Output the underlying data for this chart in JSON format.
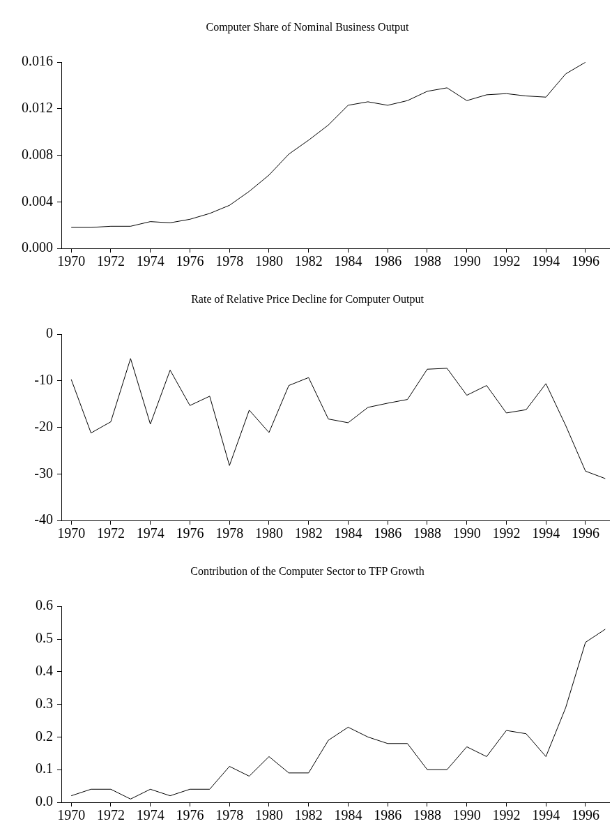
{
  "chart_data": [
    {
      "type": "line",
      "title": "Computer Share of Nominal Business Output",
      "marker": "none",
      "color": "#000000",
      "x": [
        1970,
        1971,
        1972,
        1973,
        1974,
        1975,
        1976,
        1977,
        1978,
        1979,
        1980,
        1981,
        1982,
        1983,
        1984,
        1985,
        1986,
        1987,
        1988,
        1989,
        1990,
        1991,
        1992,
        1993,
        1994,
        1995,
        1996
      ],
      "values": [
        0.0018,
        0.0018,
        0.0019,
        0.0019,
        0.0023,
        0.0022,
        0.0025,
        0.003,
        0.0037,
        0.0049,
        0.0063,
        0.0081,
        0.0093,
        0.0106,
        0.0123,
        0.0126,
        0.0123,
        0.0127,
        0.0135,
        0.0138,
        0.0127,
        0.0132,
        0.0133,
        0.0131,
        0.013,
        0.015,
        0.016
      ],
      "xlim": [
        1969.5,
        1997.2
      ],
      "xticks": [
        1970,
        1972,
        1974,
        1976,
        1978,
        1980,
        1982,
        1984,
        1986,
        1988,
        1990,
        1992,
        1994,
        1996
      ],
      "ylim": [
        0,
        0.016
      ],
      "yticks": [
        {
          "value": 0,
          "label": "0.000"
        },
        {
          "value": 0.004,
          "label": "0.004"
        },
        {
          "value": 0.008,
          "label": "0.008"
        },
        {
          "value": 0.012,
          "label": "0.012"
        },
        {
          "value": 0.016,
          "label": "0.016"
        }
      ]
    },
    {
      "type": "line",
      "title": "Rate of Relative Price Decline for Computer Output",
      "marker": "none",
      "color": "#000000",
      "x": [
        1970,
        1971,
        1972,
        1973,
        1974,
        1975,
        1976,
        1977,
        1978,
        1979,
        1980,
        1981,
        1982,
        1983,
        1984,
        1985,
        1986,
        1987,
        1988,
        1989,
        1990,
        1991,
        1992,
        1993,
        1994,
        1995,
        1996,
        1997
      ],
      "values": [
        -9.7,
        -21.2,
        -18.8,
        -5.2,
        -19.3,
        -7.7,
        -15.3,
        -13.3,
        -28.2,
        -16.3,
        -21.1,
        -11.0,
        -9.3,
        -18.2,
        -19.0,
        -15.7,
        -14.8,
        -14.0,
        -7.5,
        -7.3,
        -13.1,
        -11.0,
        -16.9,
        -16.2,
        -10.6,
        -19.6,
        -29.4,
        -31.0
      ],
      "xlim": [
        1969.5,
        1997.2
      ],
      "xticks": [
        1970,
        1972,
        1974,
        1976,
        1978,
        1980,
        1982,
        1984,
        1986,
        1988,
        1990,
        1992,
        1994,
        1996
      ],
      "ylim": [
        -40,
        0
      ],
      "yticks": [
        -40,
        -30,
        -20,
        -10,
        0
      ]
    },
    {
      "type": "line",
      "title": "Contribution of the Computer Sector to TFP Growth",
      "marker": "none",
      "color": "#000000",
      "x": [
        1970,
        1971,
        1972,
        1973,
        1974,
        1975,
        1976,
        1977,
        1978,
        1979,
        1980,
        1981,
        1982,
        1983,
        1984,
        1985,
        1986,
        1987,
        1988,
        1989,
        1990,
        1991,
        1992,
        1993,
        1994,
        1995,
        1996,
        1997
      ],
      "values": [
        0.02,
        0.04,
        0.04,
        0.01,
        0.04,
        0.02,
        0.04,
        0.04,
        0.11,
        0.08,
        0.14,
        0.09,
        0.09,
        0.19,
        0.23,
        0.2,
        0.18,
        0.18,
        0.1,
        0.1,
        0.17,
        0.14,
        0.22,
        0.21,
        0.14,
        0.29,
        0.49,
        0.53
      ],
      "xlim": [
        1969.5,
        1997.2
      ],
      "xticks": [
        1970,
        1972,
        1974,
        1976,
        1978,
        1980,
        1982,
        1984,
        1986,
        1988,
        1990,
        1992,
        1994,
        1996
      ],
      "ylim": [
        0,
        0.6
      ],
      "yticks": [
        {
          "value": 0,
          "label": "0.0"
        },
        {
          "value": 0.1,
          "label": "0.1"
        },
        {
          "value": 0.2,
          "label": "0.2"
        },
        {
          "value": 0.3,
          "label": "0.3"
        },
        {
          "value": 0.4,
          "label": "0.4"
        },
        {
          "value": 0.5,
          "label": "0.5"
        },
        {
          "value": 0.6,
          "label": "0.6"
        }
      ]
    }
  ]
}
